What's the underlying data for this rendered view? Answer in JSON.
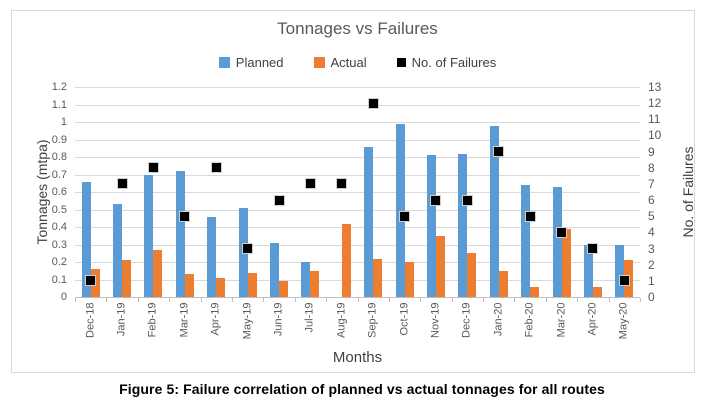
{
  "figure": {
    "caption": "Figure 5: Failure correlation of planned vs actual tonnages for all routes"
  },
  "chart_data": {
    "type": "bar",
    "title": "Tonnages vs Failures",
    "xlabel": "Months",
    "ylabel_left": "Tonnages (mtpa)",
    "ylabel_right": "No. of Failures",
    "ylim_left": [
      0,
      1.2
    ],
    "ylim_right": [
      0,
      13
    ],
    "grid": true,
    "legend_position": "top",
    "categories": [
      "Dec-18",
      "Jan-19",
      "Feb-19",
      "Mar-19",
      "Apr-19",
      "May-19",
      "Jun-19",
      "Jul-19",
      "Aug-19",
      "Sep-19",
      "Oct-19",
      "Nov-19",
      "Dec-19",
      "Jan-20",
      "Feb-20",
      "Mar-20",
      "Apr-20",
      "May-20"
    ],
    "yticks_left": [
      "0",
      "0.1",
      "0.2",
      "0.3",
      "0.4",
      "0.5",
      "0.6",
      "0.7",
      "0.8",
      "0.9",
      "1",
      "1.1",
      "1.2"
    ],
    "yticks_right": [
      "0",
      "1",
      "2",
      "3",
      "4",
      "5",
      "6",
      "7",
      "8",
      "9",
      "10",
      "11",
      "12",
      "13"
    ],
    "series": [
      {
        "name": "Planned",
        "type": "bar",
        "axis": "left",
        "color": "#5B9BD5",
        "values": [
          0.66,
          0.53,
          0.7,
          0.72,
          0.46,
          0.51,
          0.31,
          0.2,
          0,
          0.86,
          0.99,
          0.81,
          0.82,
          0.98,
          0.64,
          0.63,
          0.3,
          0.3
        ]
      },
      {
        "name": "Actual",
        "type": "bar",
        "axis": "left",
        "color": "#ED7D31",
        "values": [
          0.16,
          0.21,
          0.27,
          0.13,
          0.11,
          0.14,
          0.09,
          0.15,
          0.42,
          0.22,
          0.2,
          0.35,
          0.25,
          0.15,
          0.06,
          0.39,
          0.06,
          0.21
        ]
      },
      {
        "name": "No. of Failures",
        "type": "scatter",
        "axis": "right",
        "color": "#000000",
        "values": [
          1,
          7,
          8,
          5,
          8,
          3,
          6,
          7,
          7,
          12,
          5,
          6,
          6,
          9,
          5,
          4,
          3,
          1
        ]
      }
    ]
  }
}
